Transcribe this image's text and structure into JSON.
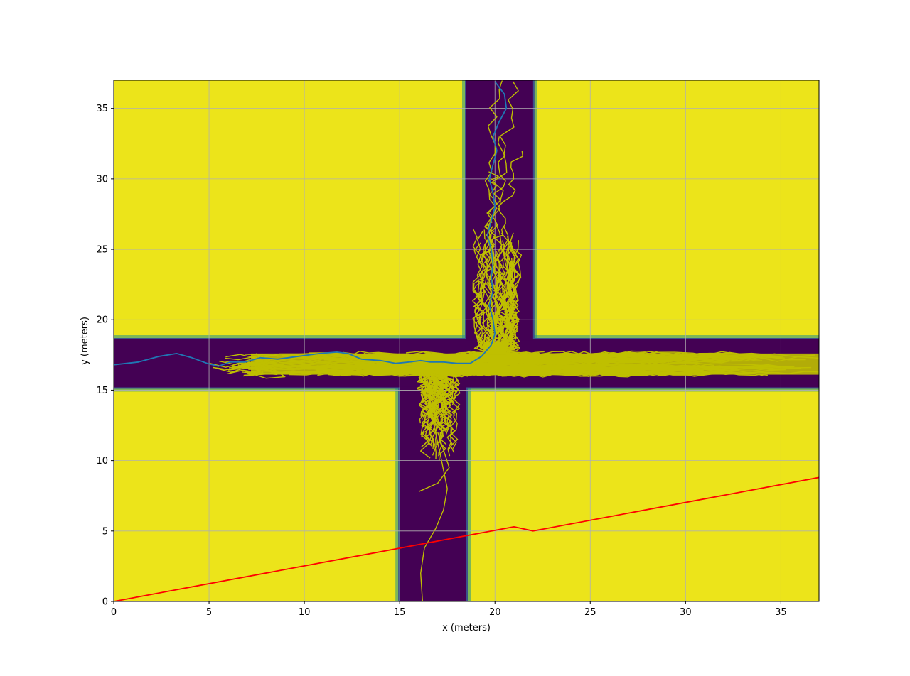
{
  "chart_data": {
    "type": "line",
    "title": "",
    "xlabel": "x (meters)",
    "ylabel": "y (meters)",
    "xlim": [
      0,
      37
    ],
    "ylim": [
      0,
      37
    ],
    "grid": true,
    "xticks": [
      0,
      5,
      10,
      15,
      20,
      25,
      30,
      35
    ],
    "yticks": [
      0,
      5,
      10,
      15,
      20,
      25,
      30,
      35
    ],
    "background": {
      "type": "heatmap",
      "colormap": "viridis",
      "high_color": "#ece41a",
      "low_color": "#440154",
      "road_horizontal_y": [
        15.2,
        18.6
      ],
      "road_vertical_upper_x": [
        18.5,
        22.0
      ],
      "road_vertical_lower_x": [
        15.0,
        18.5
      ]
    },
    "colors": {
      "sampled_trajectories": "#bfbf00",
      "planned_path": "#1f77b4",
      "reference_line": "#ff0000"
    },
    "series": [
      {
        "color": "#1f77b4",
        "x": [
          0.0,
          1.3,
          2.4,
          3.3,
          4.1,
          4.9,
          5.5,
          6.1,
          6.9,
          7.7,
          8.6,
          9.7,
          10.8,
          11.7,
          12.3,
          13.0,
          14.0,
          14.8,
          15.5,
          16.1,
          16.6,
          17.3,
          18.0,
          18.7,
          19.3,
          19.8,
          20.0,
          19.9,
          19.7,
          19.9,
          19.8,
          19.9,
          19.8,
          19.6,
          19.8,
          20.0,
          19.9,
          19.7,
          19.9,
          20.1,
          19.9,
          20.2,
          20.6,
          20.5,
          20.0
        ],
        "y": [
          16.8,
          17.0,
          17.4,
          17.6,
          17.3,
          16.9,
          16.7,
          17.0,
          17.0,
          17.3,
          17.2,
          17.4,
          17.6,
          17.7,
          17.6,
          17.2,
          17.1,
          16.9,
          17.0,
          17.1,
          17.0,
          17.0,
          16.9,
          16.9,
          17.4,
          18.2,
          19.0,
          20.0,
          21.0,
          22.0,
          23.0,
          24.0,
          25.0,
          26.0,
          27.0,
          28.0,
          29.0,
          30.0,
          31.0,
          32.0,
          33.0,
          34.0,
          35.0,
          36.0,
          36.9
        ]
      },
      {
        "color": "#ff0000",
        "x": [
          0,
          21.0,
          22.0,
          37.0
        ],
        "y": [
          0,
          5.3,
          5.0,
          8.8
        ]
      }
    ]
  }
}
